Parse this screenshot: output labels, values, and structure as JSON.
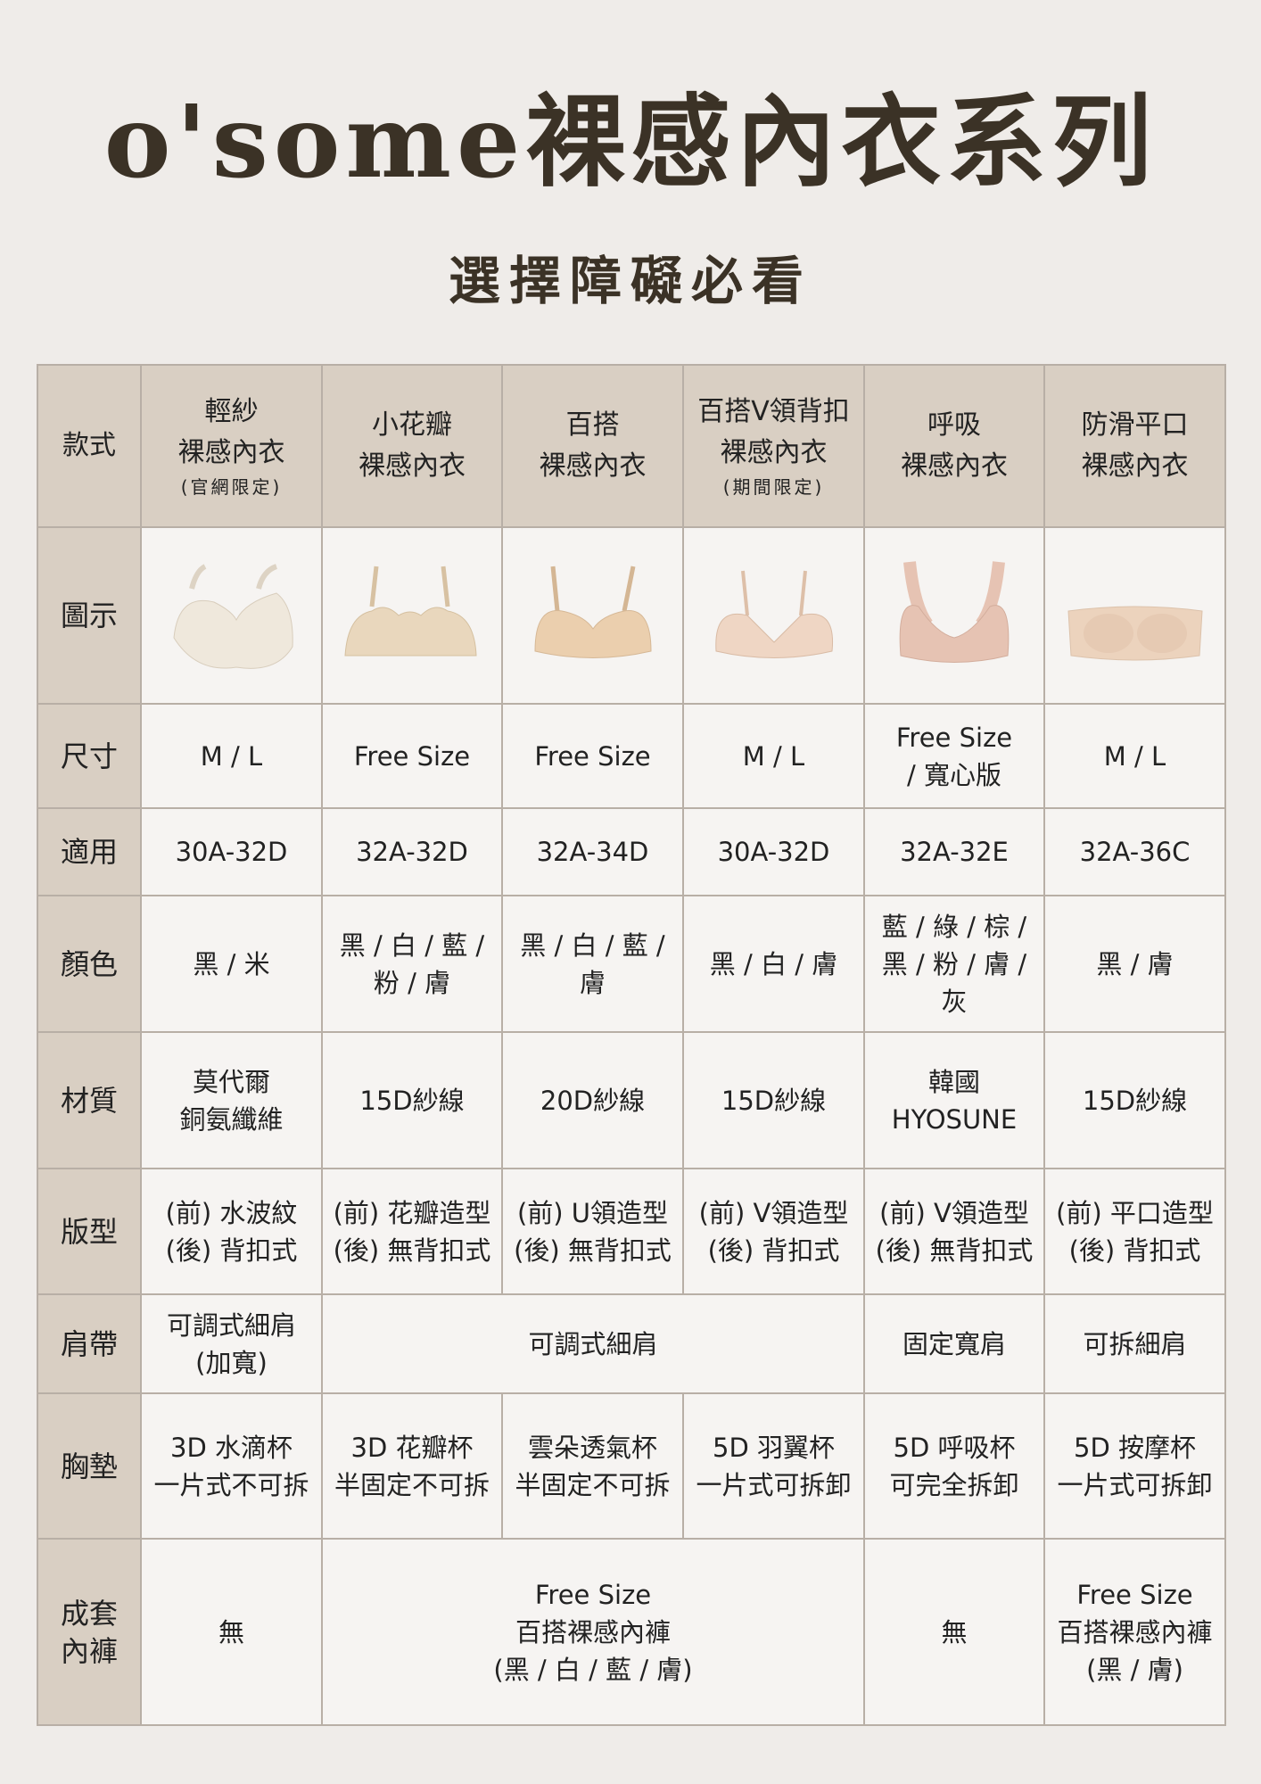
{
  "title": "o'some裸感內衣系列",
  "subtitle": "選擇障礙必看",
  "colors": {
    "header_bg": "#d9cfc3",
    "cell_bg": "#f6f4f2",
    "border": "#b8afa6",
    "title": "#3b3226"
  },
  "header": {
    "label": "款式",
    "columns": [
      {
        "name": "輕紗\n裸感內衣",
        "note": "(官網限定)"
      },
      {
        "name": "小花瓣\n裸感內衣",
        "note": ""
      },
      {
        "name": "百搭\n裸感內衣",
        "note": ""
      },
      {
        "name": "百搭V領背扣\n裸感內衣",
        "note": "(期間限定)"
      },
      {
        "name": "呼吸\n裸感內衣",
        "note": ""
      },
      {
        "name": "防滑平口\n裸感內衣",
        "note": ""
      }
    ]
  },
  "image_row": {
    "label": "圖示",
    "images": [
      {
        "icon": "bra-ivory-icon",
        "color": "#efe8dc"
      },
      {
        "icon": "bra-scalloped-nude-icon",
        "color": "#e9d7bd"
      },
      {
        "icon": "bra-nude-icon",
        "color": "#ebcfae"
      },
      {
        "icon": "bra-vneck-nude-icon",
        "color": "#efd6c4"
      },
      {
        "icon": "bra-racerback-pink-icon",
        "color": "#e6c3b3"
      },
      {
        "icon": "bandeau-nude-icon",
        "color": "#ecd3bd"
      }
    ]
  },
  "rows": [
    {
      "key": "size",
      "label": "尺寸",
      "cells": [
        {
          "text": "M / L",
          "span": 1
        },
        {
          "text": "Free Size",
          "span": 1
        },
        {
          "text": "Free Size",
          "span": 1
        },
        {
          "text": "M / L",
          "span": 1
        },
        {
          "text": "Free Size\n/ 寬心版",
          "span": 1
        },
        {
          "text": "M / L",
          "span": 1
        }
      ]
    },
    {
      "key": "fit",
      "label": "適用",
      "cells": [
        {
          "text": "30A-32D",
          "span": 1
        },
        {
          "text": "32A-32D",
          "span": 1
        },
        {
          "text": "32A-34D",
          "span": 1
        },
        {
          "text": "30A-32D",
          "span": 1
        },
        {
          "text": "32A-32E",
          "span": 1
        },
        {
          "text": "32A-36C",
          "span": 1
        }
      ]
    },
    {
      "key": "color",
      "label": "顏色",
      "cells": [
        {
          "text": "黑 / 米",
          "span": 1
        },
        {
          "text": "黑 / 白 / 藍 /\n粉 / 膚",
          "span": 1
        },
        {
          "text": "黑 / 白 / 藍 /\n膚",
          "span": 1
        },
        {
          "text": "黑 / 白 / 膚",
          "span": 1
        },
        {
          "text": "藍 / 綠 / 棕 /\n黑 / 粉 / 膚 /\n灰",
          "span": 1
        },
        {
          "text": "黑 / 膚",
          "span": 1
        }
      ]
    },
    {
      "key": "material",
      "label": "材質",
      "cells": [
        {
          "text": "莫代爾\n銅氨纖維",
          "span": 1
        },
        {
          "text": "15D紗線",
          "span": 1
        },
        {
          "text": "20D紗線",
          "span": 1
        },
        {
          "text": "15D紗線",
          "span": 1
        },
        {
          "text": "韓國\nHYOSUNE",
          "span": 1
        },
        {
          "text": "15D紗線",
          "span": 1
        }
      ]
    },
    {
      "key": "style",
      "label": "版型",
      "cells": [
        {
          "text": "(前) 水波紋\n(後) 背扣式",
          "span": 1
        },
        {
          "text": "(前) 花瓣造型\n(後) 無背扣式",
          "span": 1
        },
        {
          "text": "(前) U領造型\n(後) 無背扣式",
          "span": 1
        },
        {
          "text": "(前) V領造型\n(後) 背扣式",
          "span": 1
        },
        {
          "text": "(前) V領造型\n(後) 無背扣式",
          "span": 1
        },
        {
          "text": "(前) 平口造型\n(後) 背扣式",
          "span": 1
        }
      ]
    },
    {
      "key": "strap",
      "label": "肩帶",
      "cells": [
        {
          "text": "可調式細肩\n(加寬)",
          "span": 1
        },
        {
          "text": "可調式細肩",
          "span": 3
        },
        {
          "text": "固定寬肩",
          "span": 1
        },
        {
          "text": "可拆細肩",
          "span": 1
        }
      ]
    },
    {
      "key": "pad",
      "label": "胸墊",
      "cells": [
        {
          "text": "3D 水滴杯\n一片式不可拆",
          "span": 1
        },
        {
          "text": "3D 花瓣杯\n半固定不可拆",
          "span": 1
        },
        {
          "text": "雲朵透氣杯\n半固定不可拆",
          "span": 1
        },
        {
          "text": "5D 羽翼杯\n一片式可拆卸",
          "span": 1
        },
        {
          "text": "5D 呼吸杯\n可完全拆卸",
          "span": 1
        },
        {
          "text": "5D 按摩杯\n一片式可拆卸",
          "span": 1
        }
      ]
    },
    {
      "key": "set",
      "label": "成套\n內褲",
      "cells": [
        {
          "text": "無",
          "span": 1
        },
        {
          "text": "Free Size\n百搭裸感內褲\n(黑 / 白 / 藍 / 膚)",
          "span": 3
        },
        {
          "text": "無",
          "span": 1
        },
        {
          "text": "Free Size\n百搭裸感內褲\n(黑 / 膚)",
          "span": 1
        }
      ]
    }
  ]
}
